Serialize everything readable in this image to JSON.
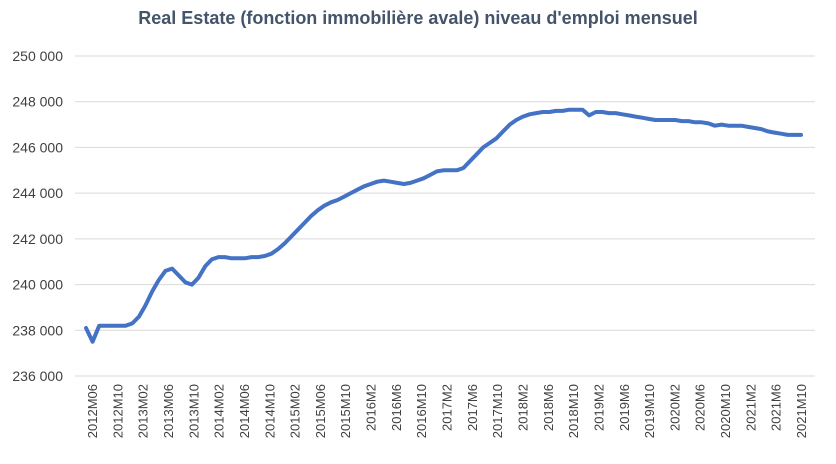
{
  "chart_data": {
    "type": "line",
    "title": "Real Estate (fonction immobilière avale) niveau d'emploi mensuel",
    "xlabel": "",
    "ylabel": "",
    "ylim": [
      236000,
      250000
    ],
    "yticks": [
      "236 000",
      "238 000",
      "240 000",
      "242 000",
      "244 000",
      "246 000",
      "248 000",
      "250 000"
    ],
    "ytick_values": [
      236000,
      238000,
      240000,
      242000,
      244000,
      246000,
      248000,
      250000
    ],
    "grid": true,
    "legend": "none",
    "line_color": "#4472c4",
    "x_tick_labels": [
      "2012M06",
      "2012M10",
      "2013M02",
      "2013M06",
      "2013M10",
      "2014M02",
      "2014M06",
      "2014M10",
      "2015M02",
      "2015M06",
      "2015M10",
      "2016M2",
      "2016M6",
      "2016M10",
      "2017M2",
      "2017M6",
      "2017M10",
      "2018M2",
      "2018M6",
      "2018M10",
      "2019M2",
      "2019M6",
      "2019M10",
      "2020M2",
      "2020M6",
      "2020M10",
      "2021M2",
      "2021M6",
      "2021M10"
    ],
    "series": [
      {
        "values": [
          238100,
          237500,
          238200,
          238200,
          238200,
          238200,
          238200,
          238300,
          238600,
          239100,
          239700,
          240200,
          240600,
          240700,
          240400,
          240100,
          240000,
          240300,
          240800,
          241100,
          241200,
          241200,
          241150,
          241150,
          241150,
          241200,
          241200,
          241250,
          241350,
          241550,
          241800,
          242100,
          242400,
          242700,
          243000,
          243250,
          243450,
          243600,
          243700,
          243850,
          244000,
          244150,
          244300,
          244400,
          244500,
          244550,
          244500,
          244450,
          244400,
          244450,
          244550,
          244650,
          244800,
          244950,
          245000,
          245000,
          245000,
          245100,
          245400,
          245700,
          246000,
          246200,
          246400,
          246700,
          247000,
          247200,
          247350,
          247450,
          247500,
          247550,
          247550,
          247600,
          247600,
          247650,
          247650,
          247650,
          247400,
          247550,
          247550,
          247500,
          247500,
          247450,
          247400,
          247350,
          247300,
          247250,
          247200,
          247200,
          247200,
          247200,
          247150,
          247150,
          247100,
          247100,
          247050,
          246950,
          247000,
          246950,
          246950,
          246950,
          246900,
          246850,
          246800,
          246700,
          246650,
          246600,
          246550,
          246550,
          246550
        ]
      }
    ]
  }
}
